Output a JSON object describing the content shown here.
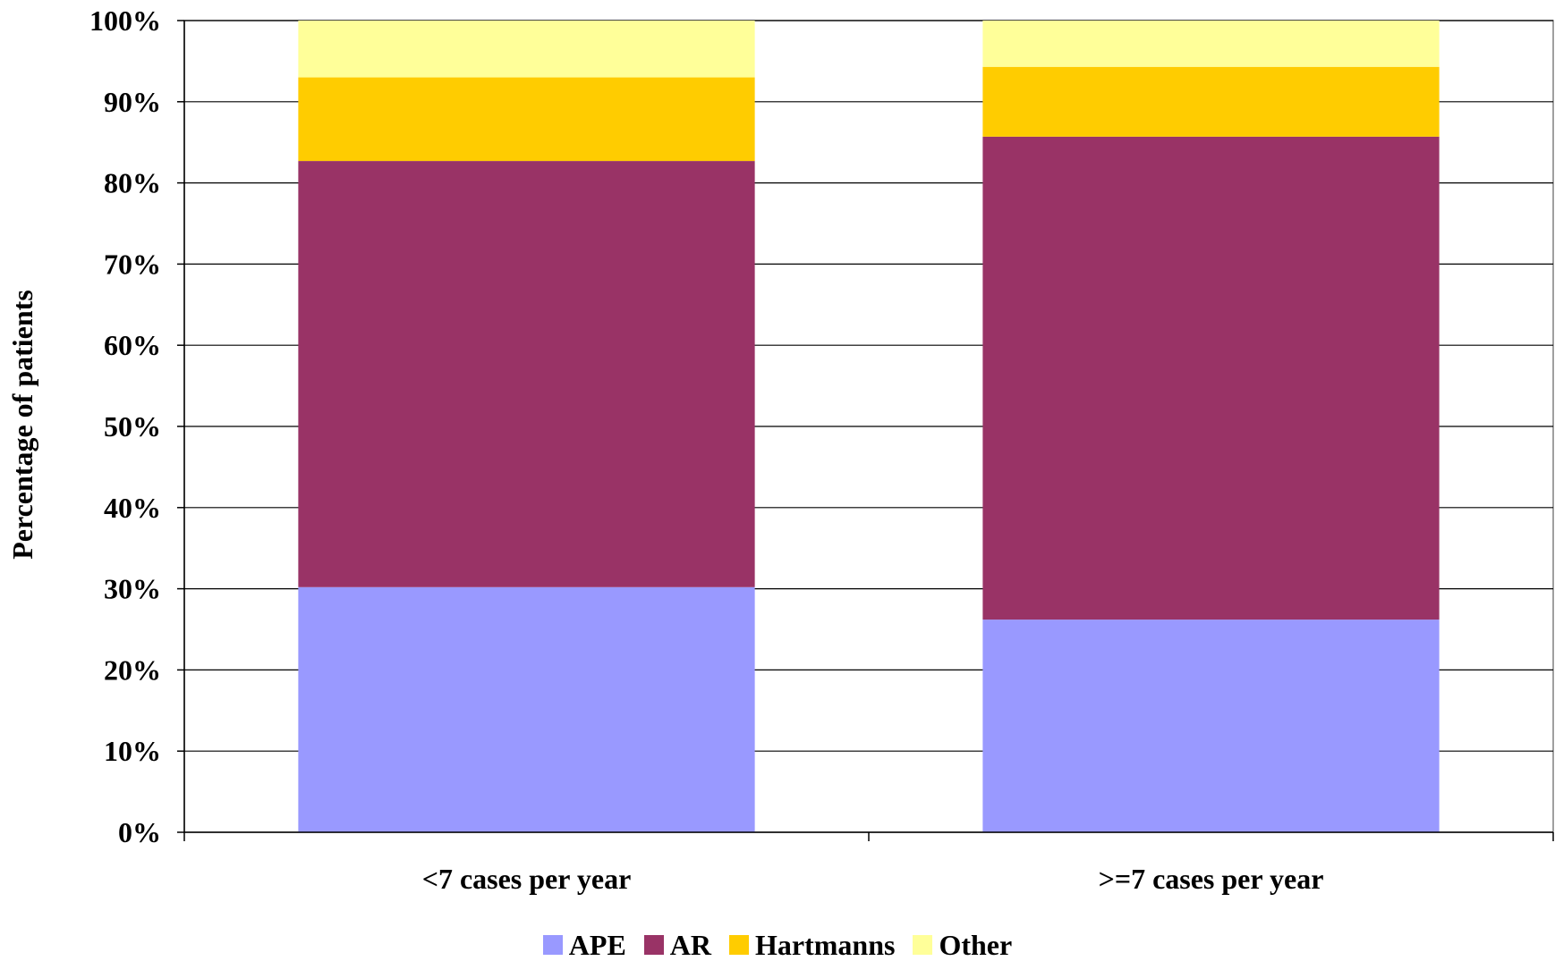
{
  "chart_data": {
    "type": "bar",
    "stacked": true,
    "percent_stacked": true,
    "title": "",
    "xlabel": "",
    "ylabel": "Percentage of patients",
    "ylim": [
      0,
      100
    ],
    "y_ticks": [
      "0%",
      "10%",
      "20%",
      "30%",
      "40%",
      "50%",
      "60%",
      "70%",
      "80%",
      "90%",
      "100%"
    ],
    "categories": [
      "<7 cases per year",
      ">=7 cases per year"
    ],
    "series": [
      {
        "name": "APE",
        "values": [
          30.2,
          26.2
        ],
        "color": "#9999ff"
      },
      {
        "name": "AR",
        "values": [
          52.5,
          59.5
        ],
        "color": "#993366"
      },
      {
        "name": "Hartmanns",
        "values": [
          10.3,
          8.6
        ],
        "color": "#ffcc00"
      },
      {
        "name": "Other",
        "values": [
          7.0,
          5.7
        ],
        "color": "#ffff99"
      }
    ],
    "grid": "horizontal",
    "legend_position": "bottom"
  }
}
